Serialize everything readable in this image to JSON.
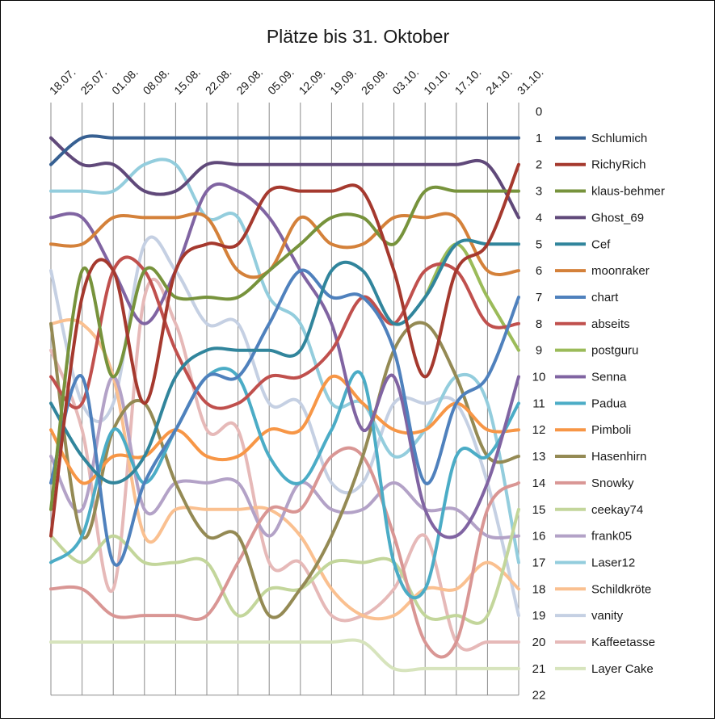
{
  "chart_data": {
    "type": "line",
    "title": "Plätze bis 31. Oktober",
    "xlabel": "",
    "ylabel": "",
    "x": [
      "18.07.",
      "25.07.",
      "01.08.",
      "08.08.",
      "15.08.",
      "22.08.",
      "29.08.",
      "05.09.",
      "12.09.",
      "19.09.",
      "26.09.",
      "03.10.",
      "10.10.",
      "17.10.",
      "24.10.",
      "31.10."
    ],
    "y_ticks": [
      "0",
      "1",
      "2",
      "3",
      "4",
      "5",
      "6",
      "7",
      "8",
      "9",
      "10",
      "11",
      "12",
      "13",
      "14",
      "15",
      "16",
      "17",
      "18",
      "19",
      "20",
      "21",
      "22"
    ],
    "ylim": [
      0,
      22
    ],
    "y_inverted": true,
    "x_axis_position": "top",
    "y_axis_position": "right",
    "grid": "vertical",
    "legend_position": "right",
    "series": [
      {
        "name": "Schlumich",
        "color": "#376092",
        "values": [
          2,
          1,
          1,
          1,
          1,
          1,
          1,
          1,
          1,
          1,
          1,
          1,
          1,
          1,
          1,
          1
        ]
      },
      {
        "name": "RichyRich",
        "color": "#a5392e",
        "values": [
          16,
          7,
          6,
          11,
          6,
          5,
          5,
          3,
          3,
          3,
          3,
          6,
          10,
          6,
          5,
          2
        ]
      },
      {
        "name": "klaus-behmer",
        "color": "#77933c",
        "values": [
          15,
          6,
          10,
          6,
          7,
          7,
          7,
          6,
          5,
          4,
          4,
          5,
          3,
          3,
          3,
          3
        ]
      },
      {
        "name": "Ghost_69",
        "color": "#60497a",
        "values": [
          1,
          2,
          2,
          3,
          3,
          2,
          2,
          2,
          2,
          2,
          2,
          2,
          2,
          2,
          2,
          4
        ]
      },
      {
        "name": "Cef",
        "color": "#31859c",
        "values": [
          11,
          13,
          14,
          13,
          10,
          9,
          9,
          9,
          9,
          6,
          6,
          8,
          7,
          5,
          5,
          5
        ]
      },
      {
        "name": "moonraker",
        "color": "#d4813a",
        "values": [
          5,
          5,
          4,
          4,
          4,
          4,
          6,
          6,
          4,
          5,
          5,
          4,
          4,
          4,
          6,
          6
        ]
      },
      {
        "name": "chart",
        "color": "#4f81bd",
        "values": [
          14,
          10,
          17,
          14,
          12,
          10,
          10,
          8,
          6,
          7,
          7,
          9,
          14,
          11,
          10,
          7
        ]
      },
      {
        "name": "abseits",
        "color": "#c0504d",
        "values": [
          10,
          11,
          6,
          6,
          9,
          11,
          11,
          10,
          10,
          9,
          7,
          8,
          6,
          6,
          8,
          8
        ]
      },
      {
        "name": "postguru",
        "color": "#9bbb59",
        "values": [
          null,
          null,
          null,
          null,
          null,
          null,
          null,
          null,
          null,
          null,
          null,
          null,
          7,
          5,
          7,
          9
        ]
      },
      {
        "name": "Senna",
        "color": "#8064a2",
        "values": [
          4,
          4,
          6,
          8,
          6,
          3,
          3,
          4,
          6,
          8,
          12,
          10,
          15,
          16,
          14,
          10
        ]
      },
      {
        "name": "Padua",
        "color": "#4bacc6",
        "values": [
          17,
          16,
          12,
          14,
          12,
          10,
          10,
          13,
          14,
          12,
          10,
          17,
          18,
          13,
          13,
          11
        ]
      },
      {
        "name": "Pimboli",
        "color": "#f79646",
        "values": [
          12,
          14,
          13,
          13,
          12,
          13,
          13,
          12,
          12,
          10,
          11,
          12,
          12,
          11,
          12,
          12
        ]
      },
      {
        "name": "Hasenhirn",
        "color": "#948a54",
        "values": [
          8,
          16,
          12,
          11,
          14,
          16,
          16,
          19,
          18,
          16,
          13,
          9,
          8,
          10,
          13,
          13
        ]
      },
      {
        "name": "Snowky",
        "color": "#d99694",
        "values": [
          18,
          18,
          19,
          19,
          19,
          19,
          17,
          15,
          15,
          13,
          13,
          16,
          20,
          20,
          15,
          14
        ]
      },
      {
        "name": "ceekay74",
        "color": "#c3d69b",
        "values": [
          16,
          17,
          16,
          17,
          17,
          17,
          19,
          18,
          18,
          17,
          17,
          17,
          19,
          19,
          19,
          15
        ]
      },
      {
        "name": "frank05",
        "color": "#b3a2c7",
        "values": [
          13,
          15,
          10,
          15,
          14,
          14,
          14,
          16,
          14,
          15,
          15,
          14,
          15,
          15,
          16,
          16
        ]
      },
      {
        "name": "Laser12",
        "color": "#93cddd",
        "values": [
          3,
          3,
          3,
          2,
          2,
          4,
          4,
          7,
          8,
          11,
          11,
          13,
          12,
          10,
          11,
          17
        ]
      },
      {
        "name": "Schildkröte",
        "color": "#fac090",
        "values": [
          8,
          8,
          10,
          16,
          15,
          15,
          15,
          15,
          16,
          18,
          19,
          19,
          18,
          18,
          17,
          18
        ]
      },
      {
        "name": "vanity",
        "color": "#c5d0e3",
        "values": [
          6,
          11,
          11,
          5,
          6,
          8,
          8,
          11,
          11,
          14,
          14,
          11,
          11,
          11,
          14,
          19
        ]
      },
      {
        "name": "Kaffeetasse",
        "color": "#e6b9b8",
        "values": [
          9,
          12,
          18,
          7,
          8,
          12,
          12,
          17,
          17,
          19,
          19,
          18,
          16,
          20,
          20,
          20
        ]
      },
      {
        "name": "Layer Cake",
        "color": "#d7e4bd",
        "values": [
          20,
          20,
          20,
          20,
          20,
          20,
          20,
          20,
          20,
          20,
          20,
          21,
          21,
          21,
          21,
          21
        ]
      }
    ]
  }
}
